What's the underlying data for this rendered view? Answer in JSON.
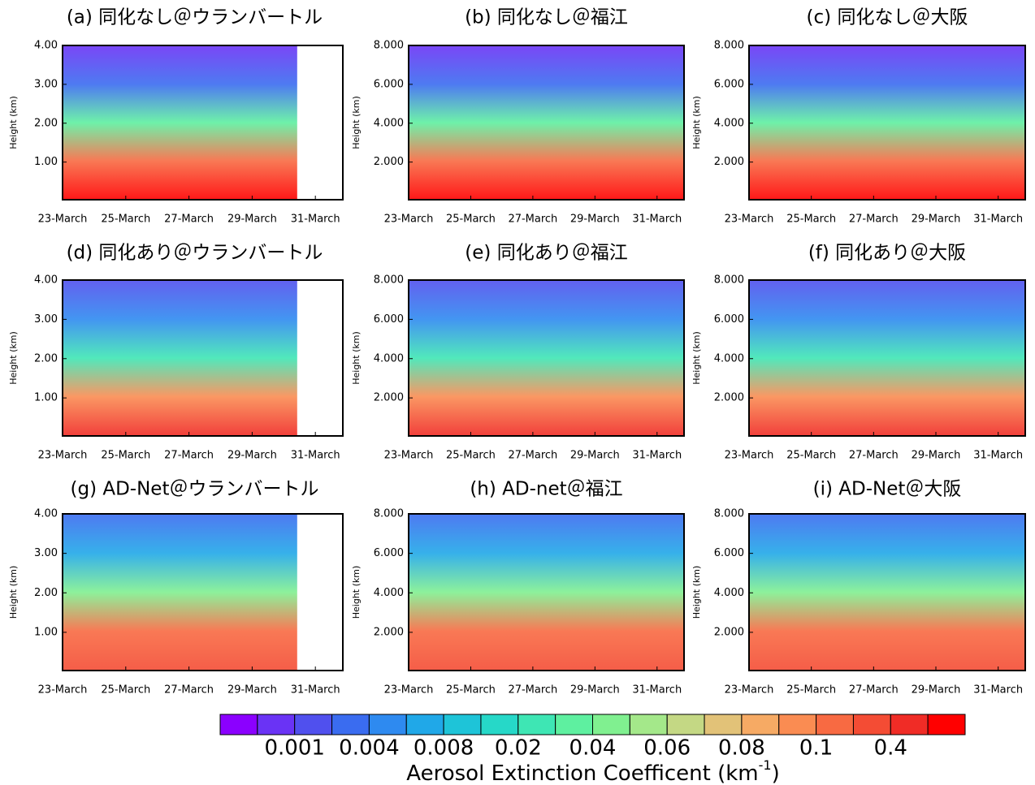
{
  "panels": [
    {
      "title": "(a) 同化なし＠ウランバートル",
      "ylabel": "Height (km)",
      "yticks": [
        "1.00",
        "2.00",
        "3.00",
        "4.00"
      ],
      "xticks": [
        "23-March",
        "25-March",
        "27-March",
        "29-March",
        "31-March"
      ]
    },
    {
      "title": "(b) 同化なし＠福江",
      "ylabel": "Height (km)",
      "yticks": [
        "2.000",
        "4.000",
        "6.000",
        "8.000"
      ],
      "xticks": [
        "23-March",
        "25-March",
        "27-March",
        "29-March",
        "31-March"
      ]
    },
    {
      "title": "(c) 同化なし＠大阪",
      "ylabel": "Height (km)",
      "yticks": [
        "2.000",
        "4.000",
        "6.000",
        "8.000"
      ],
      "xticks": [
        "23-March",
        "25-March",
        "27-March",
        "29-March",
        "31-March"
      ]
    },
    {
      "title": "(d) 同化あり＠ウランバートル",
      "ylabel": "Height (km)",
      "yticks": [
        "1.00",
        "2.00",
        "3.00",
        "4.00"
      ],
      "xticks": [
        "23-March",
        "25-March",
        "27-March",
        "29-March",
        "31-March"
      ]
    },
    {
      "title": "(e) 同化あり＠福江",
      "ylabel": "Height (km)",
      "yticks": [
        "2.000",
        "4.000",
        "6.000",
        "8.000"
      ],
      "xticks": [
        "23-March",
        "25-March",
        "27-March",
        "29-March",
        "31-March"
      ]
    },
    {
      "title": "(f) 同化あり＠大阪",
      "ylabel": "Height (km)",
      "yticks": [
        "2.000",
        "4.000",
        "6.000",
        "8.000"
      ],
      "xticks": [
        "23-March",
        "25-March",
        "27-March",
        "29-March",
        "31-March"
      ]
    },
    {
      "title": "(g) AD-Net＠ウランバートル",
      "ylabel": "Height (km)",
      "yticks": [
        "1.00",
        "2.00",
        "3.00",
        "4.00"
      ],
      "xticks": [
        "23-March",
        "25-March",
        "27-March",
        "29-March",
        "31-March"
      ]
    },
    {
      "title": "(h) AD-net＠福江",
      "ylabel": "Height (km)",
      "yticks": [
        "2.000",
        "4.000",
        "6.000",
        "8.000"
      ],
      "xticks": [
        "23-March",
        "25-March",
        "27-March",
        "29-March",
        "31-March"
      ]
    },
    {
      "title": "(i) AD-Net＠大阪",
      "ylabel": "Height (km)",
      "yticks": [
        "2.000",
        "4.000",
        "6.000",
        "8.000"
      ],
      "xticks": [
        "23-March",
        "25-March",
        "27-March",
        "29-March",
        "31-March"
      ]
    }
  ],
  "colorbar": {
    "colors": [
      "#8b00ff",
      "#6a33f5",
      "#5050ee",
      "#3a6cf0",
      "#2e8af0",
      "#20a8e8",
      "#1ec4d8",
      "#26d8c8",
      "#3ee6b4",
      "#5ef0a0",
      "#80f090",
      "#a4e88a",
      "#c4d884",
      "#e2c278",
      "#f6aa64",
      "#fa8c52",
      "#f86a42",
      "#f44c34",
      "#f02c26",
      "#ff0000"
    ],
    "labels": [
      "0.001",
      "0.004",
      "0.008",
      "0.02",
      "0.04",
      "0.06",
      "0.08",
      "0.1",
      "0.4"
    ],
    "title": "Aerosol Extinction Coefficent (km",
    "title_sup": "-1",
    "title_end": ")"
  }
}
